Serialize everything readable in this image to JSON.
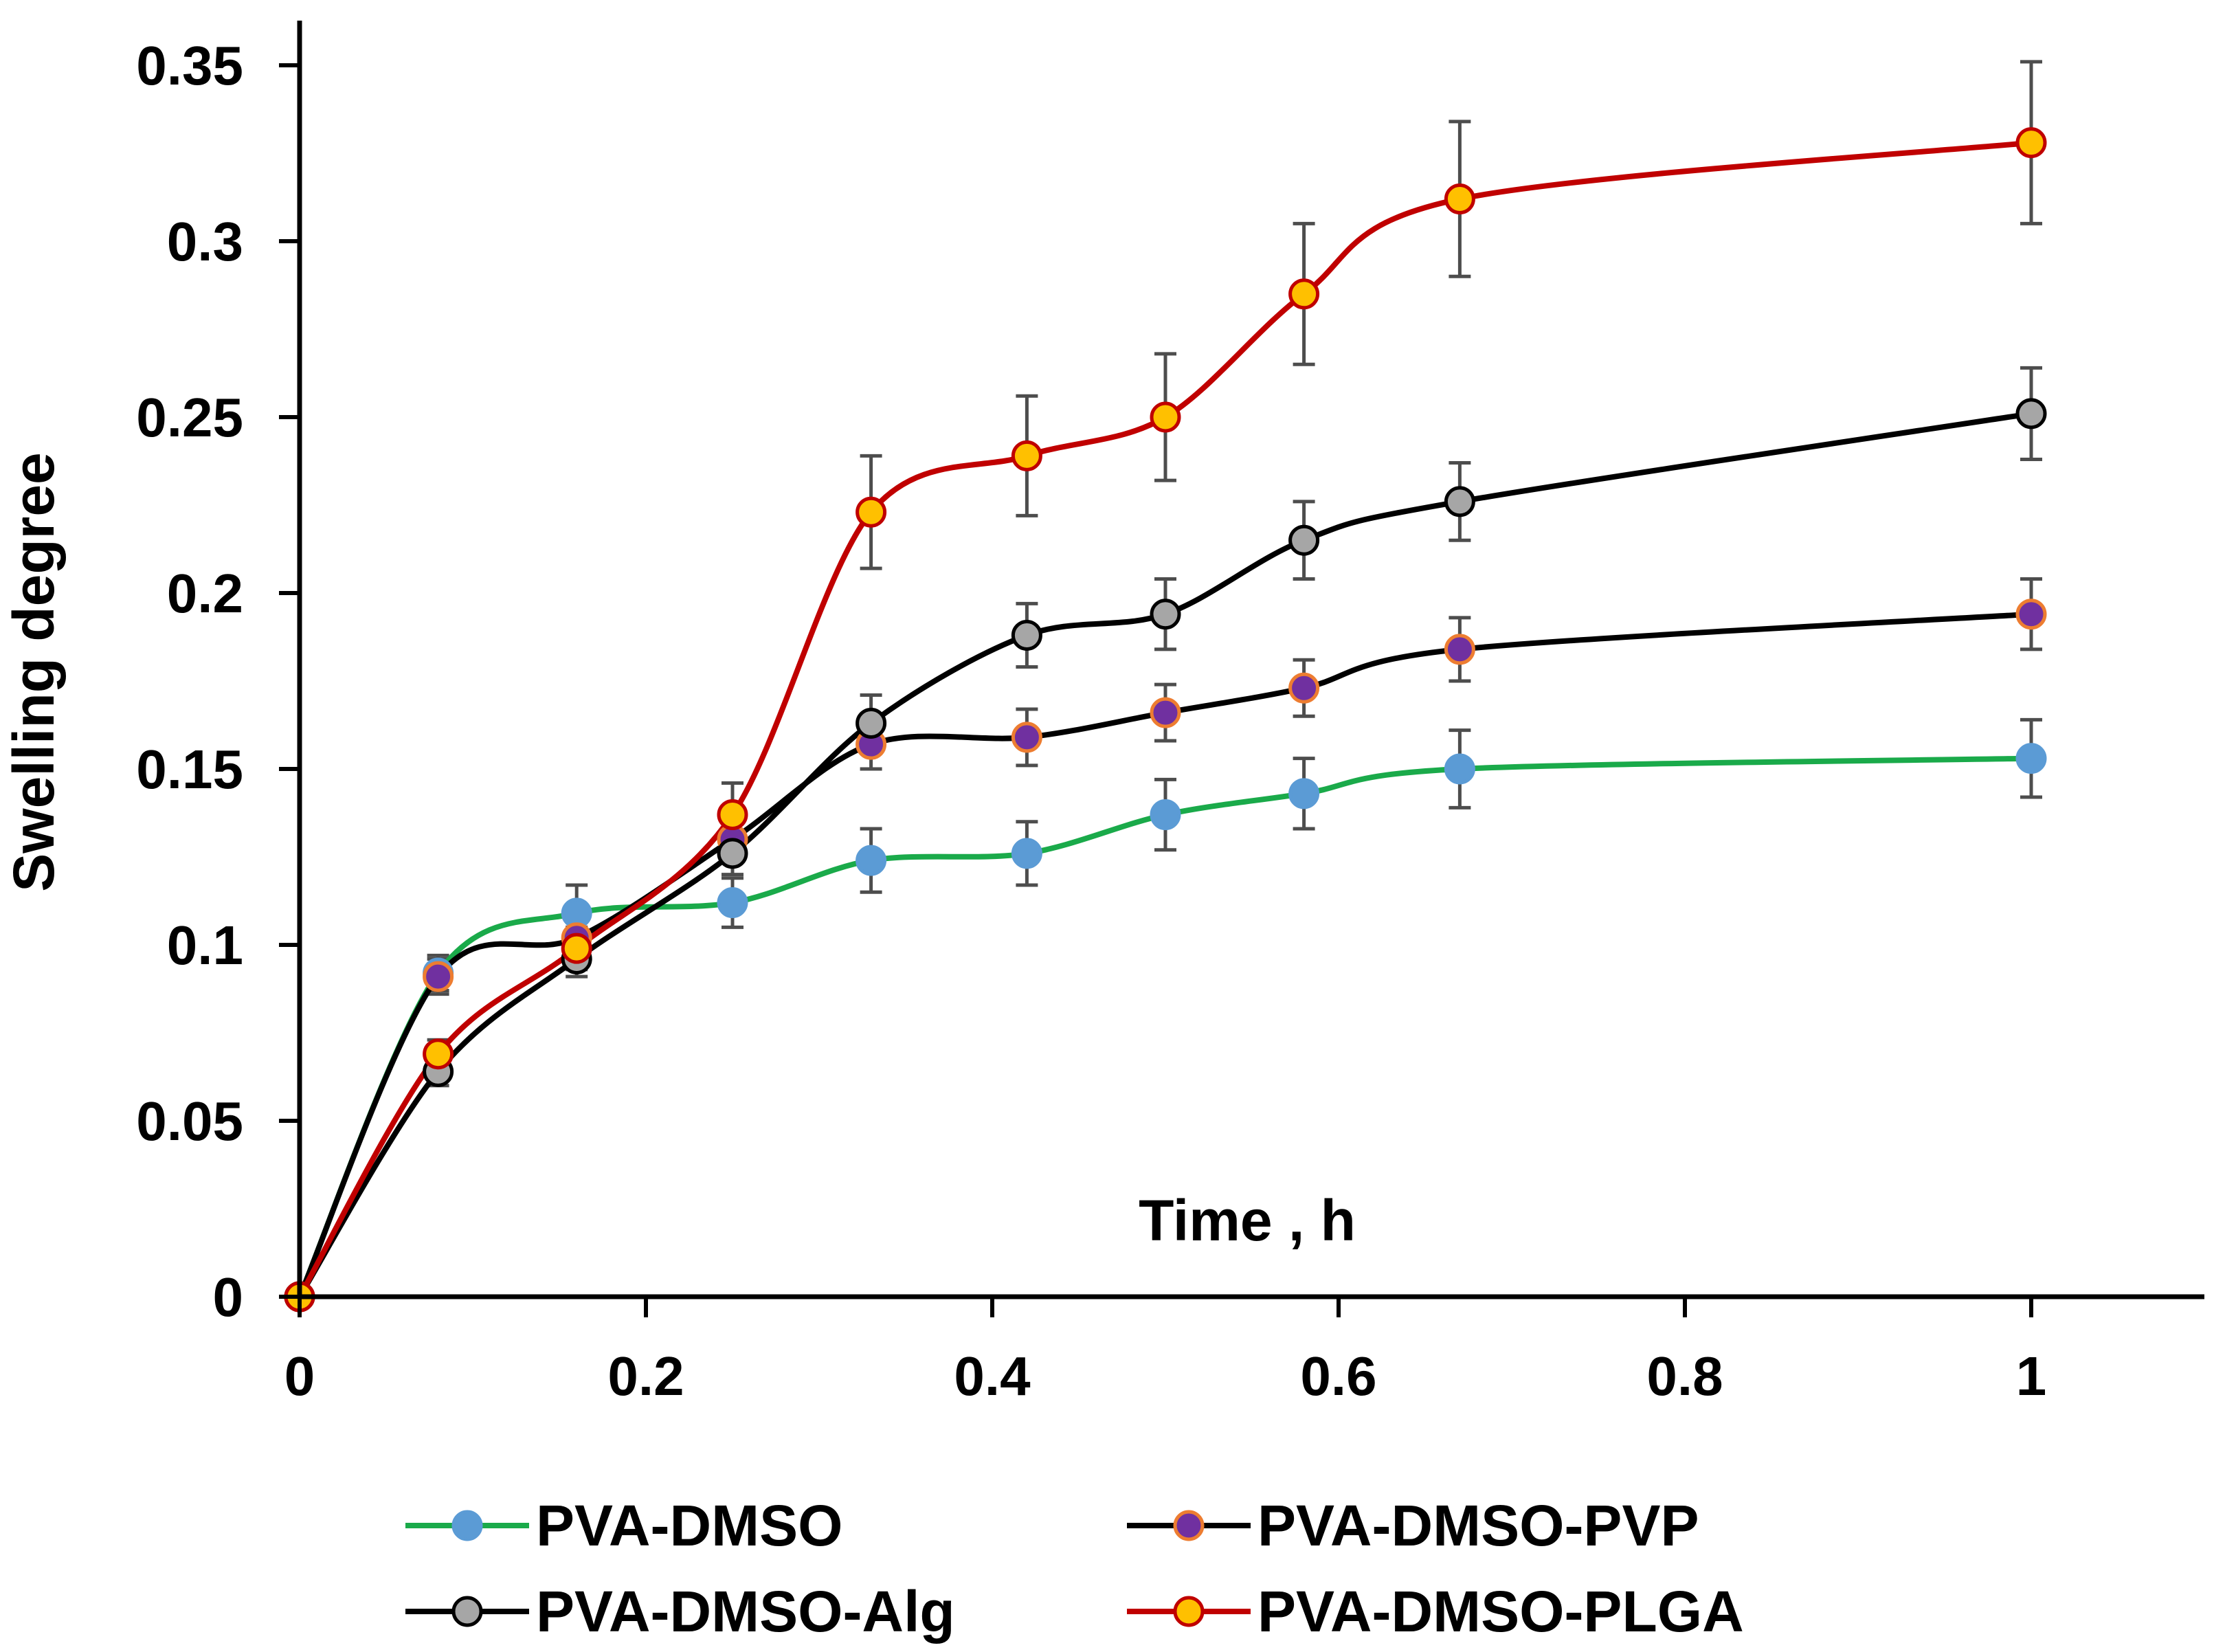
{
  "chart_data": {
    "type": "line",
    "title": "",
    "xlabel": "Time , h",
    "ylabel": "Swelling degree",
    "xlim": [
      0,
      1.1
    ],
    "ylim": [
      0,
      0.35
    ],
    "x_ticks": [
      0,
      0.2,
      0.4,
      0.6,
      0.8,
      1
    ],
    "x_tick_labels": [
      "0",
      "0.2",
      "0.4",
      "0.6",
      "0.8",
      "1"
    ],
    "y_ticks": [
      0,
      0.05,
      0.1,
      0.15,
      0.2,
      0.25,
      0.3,
      0.35
    ],
    "y_tick_labels": [
      "0",
      "0.05",
      "0.1",
      "0.15",
      "0.2",
      "0.25",
      "0.3",
      "0.35"
    ],
    "grid": false,
    "legend_position": "bottom",
    "x": [
      0,
      0.08,
      0.16,
      0.25,
      0.33,
      0.42,
      0.5,
      0.58,
      0.67,
      1
    ],
    "series": [
      {
        "name": "PVA-DMSO",
        "line_color": "#1aaa4a",
        "marker_fill": "#5b9bd5",
        "marker_edge": "#5b9bd5",
        "values": [
          0,
          0.092,
          0.109,
          0.112,
          0.124,
          0.126,
          0.137,
          0.143,
          0.15,
          0.153
        ],
        "errors": [
          0,
          0.005,
          0.008,
          0.007,
          0.009,
          0.009,
          0.01,
          0.01,
          0.011,
          0.011
        ]
      },
      {
        "name": "PVA-DMSO-PVP",
        "line_color": "#000000",
        "marker_fill": "#7030a0",
        "marker_edge": "#ed7d31",
        "values": [
          0,
          0.091,
          0.102,
          0.13,
          0.157,
          0.159,
          0.166,
          0.173,
          0.184,
          0.194
        ],
        "errors": [
          0,
          0.005,
          0.006,
          0.006,
          0.007,
          0.008,
          0.008,
          0.008,
          0.009,
          0.01
        ]
      },
      {
        "name": "PVA-DMSO-Alg",
        "line_color": "#000000",
        "marker_fill": "#a6a6a6",
        "marker_edge": "#000000",
        "values": [
          0,
          0.064,
          0.096,
          0.126,
          0.163,
          0.188,
          0.194,
          0.215,
          0.226,
          0.251
        ],
        "errors": [
          0,
          0.004,
          0.005,
          0.006,
          0.008,
          0.009,
          0.01,
          0.011,
          0.011,
          0.013
        ]
      },
      {
        "name": "PVA-DMSO-PLGA",
        "line_color": "#c00000",
        "marker_fill": "#ffc000",
        "marker_edge": "#c00000",
        "values": [
          0,
          0.069,
          0.099,
          0.137,
          0.223,
          0.239,
          0.25,
          0.285,
          0.312,
          0.328
        ],
        "errors": [
          0,
          0.004,
          0.006,
          0.009,
          0.016,
          0.017,
          0.018,
          0.02,
          0.022,
          0.023
        ]
      }
    ]
  }
}
